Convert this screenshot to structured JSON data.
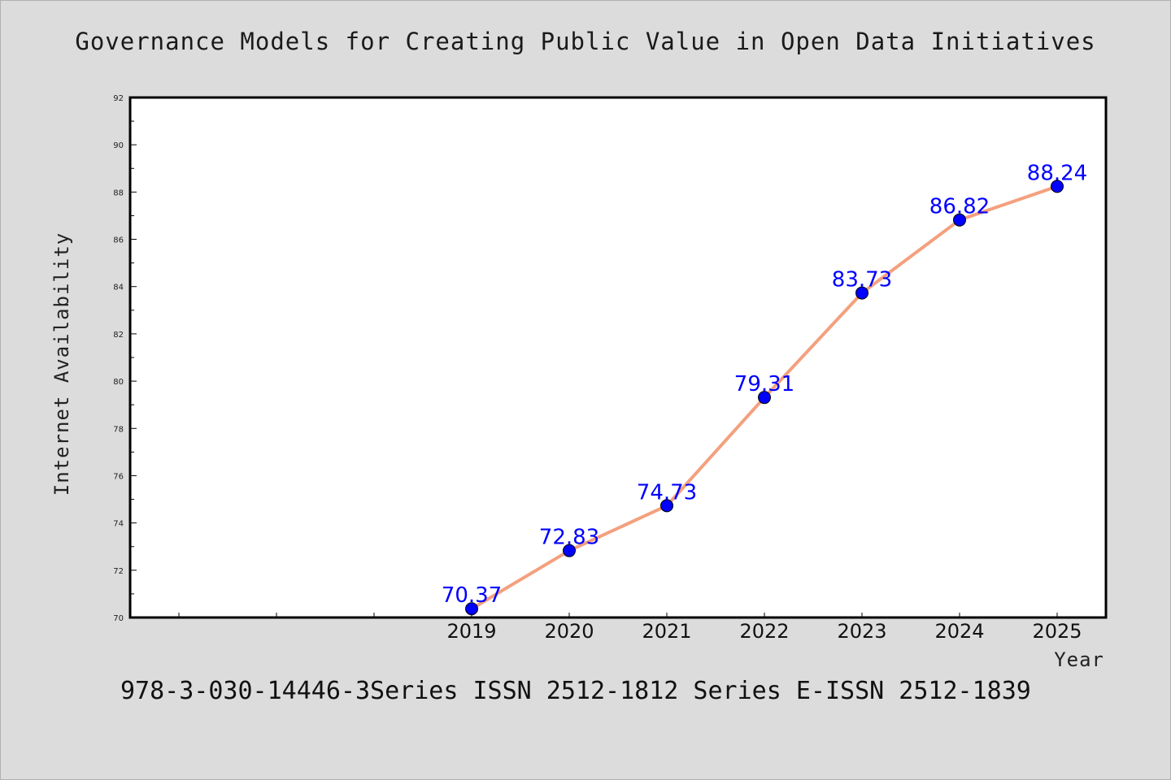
{
  "chart": {
    "title": "Governance Models for Creating Public Value in Open Data Initiatives",
    "xlabel": "Year",
    "ylabel": "Internet Availability",
    "footnote": "978-3-030-14446-3Series ISSN 2512-1812 Series E-ISSN 2512-1839"
  },
  "chart_data": {
    "type": "line",
    "title": "Governance Models for Creating Public Value in Open Data Initiatives",
    "xlabel": "Year",
    "ylabel": "Internet Availability",
    "x": [
      2019,
      2020,
      2021,
      2022,
      2023,
      2024,
      2025
    ],
    "xlim": [
      2015.5,
      2025.5
    ],
    "ylim": [
      70,
      92
    ],
    "y_ticks": [
      70,
      72,
      74,
      76,
      78,
      80,
      82,
      84,
      86,
      88,
      90,
      92
    ],
    "x_ticks": [
      2019,
      2020,
      2021,
      2022,
      2023,
      2024,
      2025
    ],
    "series": [
      {
        "values": [
          70.37,
          72.83,
          74.73,
          79.31,
          83.73,
          86.82,
          88.24
        ],
        "labels": [
          "70.37",
          "72.83",
          "74.73",
          "79.31",
          "83.73",
          "86.82",
          "88.24"
        ]
      }
    ],
    "colors": {
      "line": "#f4a07e",
      "marker": "#0000ff",
      "label": "#0000ff",
      "plot_bg": "#ffffff",
      "page_bg": "#dcdcdc"
    },
    "grid": false,
    "legend": "none"
  }
}
